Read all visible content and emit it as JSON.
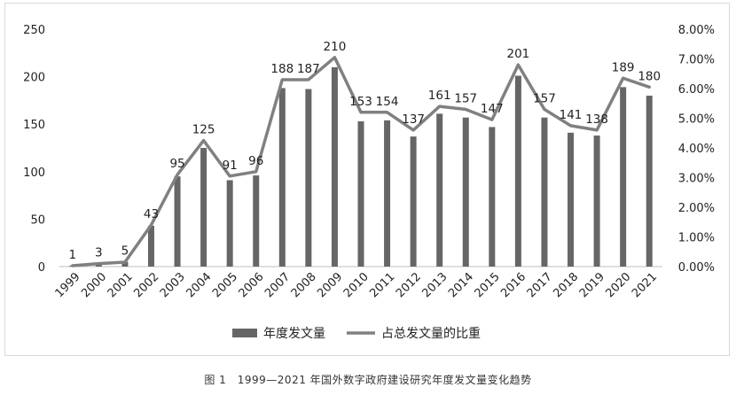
{
  "caption": "图 1　1999—2021 年国外数字政府建设研究年度发文量变化趋势",
  "chart_data": {
    "type": "bar+line",
    "categories": [
      "1999",
      "2000",
      "2001",
      "2002",
      "2003",
      "2004",
      "2005",
      "2006",
      "2007",
      "2008",
      "2009",
      "2010",
      "2011",
      "2012",
      "2013",
      "2014",
      "2015",
      "2016",
      "2017",
      "2018",
      "2019",
      "2020",
      "2021"
    ],
    "series": [
      {
        "name": "年度发文量",
        "type": "bar",
        "axis": "left",
        "color": "#666666",
        "values": [
          1,
          3,
          5,
          43,
          95,
          125,
          91,
          96,
          188,
          187,
          210,
          153,
          154,
          137,
          161,
          157,
          147,
          201,
          157,
          141,
          138,
          189,
          180
        ]
      },
      {
        "name": "占总发文量的比重",
        "type": "line",
        "axis": "right",
        "color": "#808080",
        "values": [
          0.03,
          0.1,
          0.15,
          1.4,
          3.1,
          4.25,
          3.05,
          3.2,
          6.3,
          6.3,
          7.05,
          5.2,
          5.2,
          4.6,
          5.4,
          5.3,
          4.95,
          6.8,
          5.3,
          4.75,
          4.6,
          6.35,
          6.05
        ]
      }
    ],
    "y_left": {
      "min": 0,
      "max": 250,
      "ticks": [
        "0",
        "50",
        "100",
        "150",
        "200",
        "250"
      ]
    },
    "y_right": {
      "min": 0,
      "max": 8,
      "ticks": [
        "0.00%",
        "1.00%",
        "2.00%",
        "3.00%",
        "4.00%",
        "5.00%",
        "6.00%",
        "7.00%",
        "8.00%"
      ]
    },
    "legend_position": "bottom",
    "grid": false
  }
}
